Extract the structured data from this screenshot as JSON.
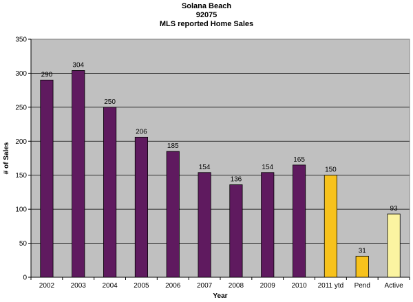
{
  "chart_data": {
    "type": "bar",
    "title_lines": [
      "Solana Beach",
      "92075",
      "MLS reported Home Sales"
    ],
    "xlabel": "Year",
    "ylabel": "# of Sales",
    "categories": [
      "2002",
      "2003",
      "2004",
      "2005",
      "2006",
      "2007",
      "2008",
      "2009",
      "2010",
      "2011 ytd",
      "Pend",
      "Active"
    ],
    "values": [
      290,
      304,
      250,
      206,
      185,
      154,
      136,
      154,
      165,
      150,
      31,
      93
    ],
    "bar_colors": [
      "#5f1a5f",
      "#5f1a5f",
      "#5f1a5f",
      "#5f1a5f",
      "#5f1a5f",
      "#5f1a5f",
      "#5f1a5f",
      "#5f1a5f",
      "#5f1a5f",
      "#f7c21c",
      "#f7c21c",
      "#fbf4a1"
    ],
    "ylim": [
      0,
      350
    ],
    "yticks": [
      0,
      50,
      100,
      150,
      200,
      250,
      300,
      350
    ],
    "grid": "horizontal",
    "legend": "none",
    "data_labels": true,
    "plot_background": "#c0c0c0"
  }
}
